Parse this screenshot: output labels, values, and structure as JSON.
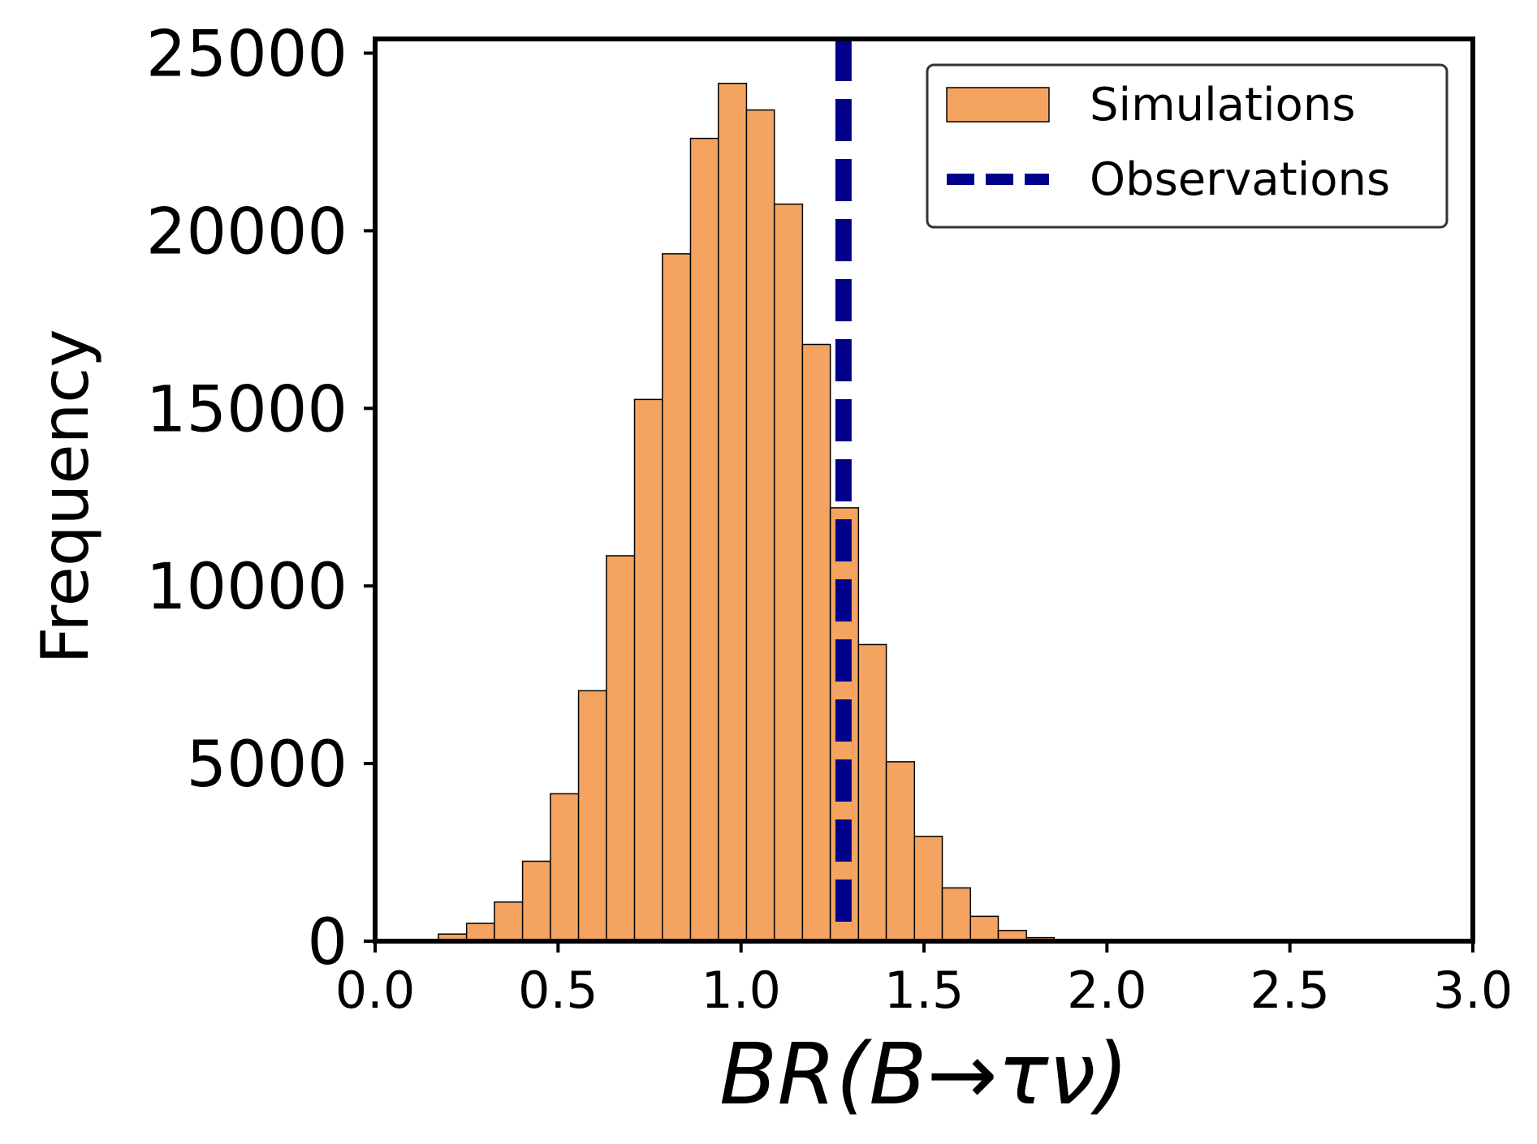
{
  "chart_data": {
    "type": "histogram",
    "title": "",
    "xlabel": "BR(B→τν)",
    "ylabel": "Frequency",
    "xlim": [
      0.0,
      3.0
    ],
    "ylim": [
      0,
      25400
    ],
    "x_ticks": [
      0.0,
      0.5,
      1.0,
      1.5,
      2.0,
      2.5,
      3.0
    ],
    "x_tick_labels": [
      "0.0",
      "0.5",
      "1.0",
      "1.5",
      "2.0",
      "2.5",
      "3.0"
    ],
    "y_ticks": [
      0,
      5000,
      10000,
      15000,
      20000,
      25000
    ],
    "y_tick_labels": [
      "0",
      "5000",
      "10000",
      "15000",
      "20000",
      "25000"
    ],
    "grid": false,
    "legend_position": "top-right",
    "series": [
      {
        "name": "Simulations",
        "kind": "bars",
        "color": "#F4A460",
        "edge_color": "#000000",
        "bins": [
          {
            "x0": 0.02,
            "x1": 0.097,
            "value": 0
          },
          {
            "x0": 0.097,
            "x1": 0.173,
            "value": 30
          },
          {
            "x0": 0.173,
            "x1": 0.25,
            "value": 200
          },
          {
            "x0": 0.25,
            "x1": 0.326,
            "value": 500
          },
          {
            "x0": 0.326,
            "x1": 0.403,
            "value": 1100
          },
          {
            "x0": 0.403,
            "x1": 0.479,
            "value": 2250
          },
          {
            "x0": 0.479,
            "x1": 0.556,
            "value": 4150
          },
          {
            "x0": 0.556,
            "x1": 0.632,
            "value": 7050
          },
          {
            "x0": 0.632,
            "x1": 0.709,
            "value": 10850
          },
          {
            "x0": 0.709,
            "x1": 0.785,
            "value": 15250
          },
          {
            "x0": 0.785,
            "x1": 0.862,
            "value": 19350
          },
          {
            "x0": 0.862,
            "x1": 0.938,
            "value": 22600
          },
          {
            "x0": 0.938,
            "x1": 1.015,
            "value": 24150
          },
          {
            "x0": 1.015,
            "x1": 1.091,
            "value": 23400
          },
          {
            "x0": 1.091,
            "x1": 1.168,
            "value": 20750
          },
          {
            "x0": 1.168,
            "x1": 1.244,
            "value": 16800
          },
          {
            "x0": 1.244,
            "x1": 1.321,
            "value": 12200
          },
          {
            "x0": 1.321,
            "x1": 1.397,
            "value": 8350
          },
          {
            "x0": 1.397,
            "x1": 1.474,
            "value": 5050
          },
          {
            "x0": 1.474,
            "x1": 1.55,
            "value": 2950
          },
          {
            "x0": 1.55,
            "x1": 1.627,
            "value": 1500
          },
          {
            "x0": 1.627,
            "x1": 1.703,
            "value": 700
          },
          {
            "x0": 1.703,
            "x1": 1.78,
            "value": 300
          },
          {
            "x0": 1.78,
            "x1": 1.856,
            "value": 100
          },
          {
            "x0": 1.856,
            "x1": 1.933,
            "value": 30
          }
        ]
      },
      {
        "name": "Observations",
        "kind": "vline",
        "color": "#00008B",
        "style": "dashed",
        "x": 1.28
      }
    ]
  }
}
